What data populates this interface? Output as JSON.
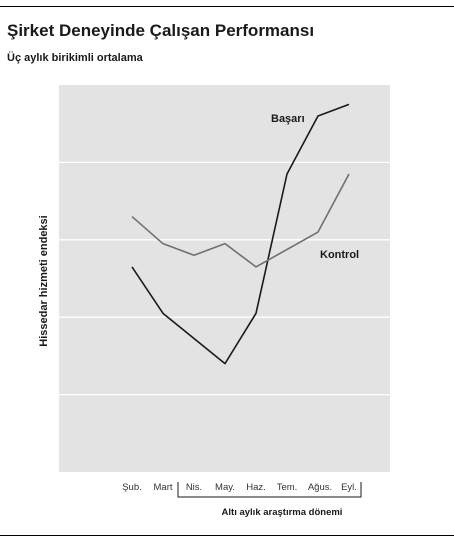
{
  "header": {
    "title": "Şirket Deneyinde Çalışan Performansı",
    "subtitle": "Üç aylık birikimli ortalama"
  },
  "chart_data": {
    "type": "line",
    "title": "Şirket Deneyinde Çalışan Performansı",
    "subtitle": "Üç aylık birikimli ortalama",
    "xlabel": "",
    "ylabel": "Hissedar hizmeti endeksi",
    "categories": [
      "Şub.",
      "Mart",
      "Nis.",
      "May.",
      "Haz.",
      "Tem.",
      "Ağus.",
      "Eyl."
    ],
    "ylim": [
      0,
      5
    ],
    "y_tick_labels_shown": false,
    "grid": "horizontal",
    "series": [
      {
        "name": "Başarı",
        "color": "#1a1a1a",
        "values": [
          2.65,
          2.05,
          null,
          1.4,
          2.05,
          3.85,
          4.6,
          4.75
        ]
      },
      {
        "name": "Kontrol",
        "color": "#707070",
        "values": [
          3.3,
          2.95,
          2.8,
          2.95,
          2.65,
          null,
          3.1,
          3.85
        ]
      }
    ],
    "annotation": {
      "bracket_from": "Nis.",
      "bracket_to": "Eyl.",
      "label": "Altı aylık araştırma dönemi"
    }
  }
}
